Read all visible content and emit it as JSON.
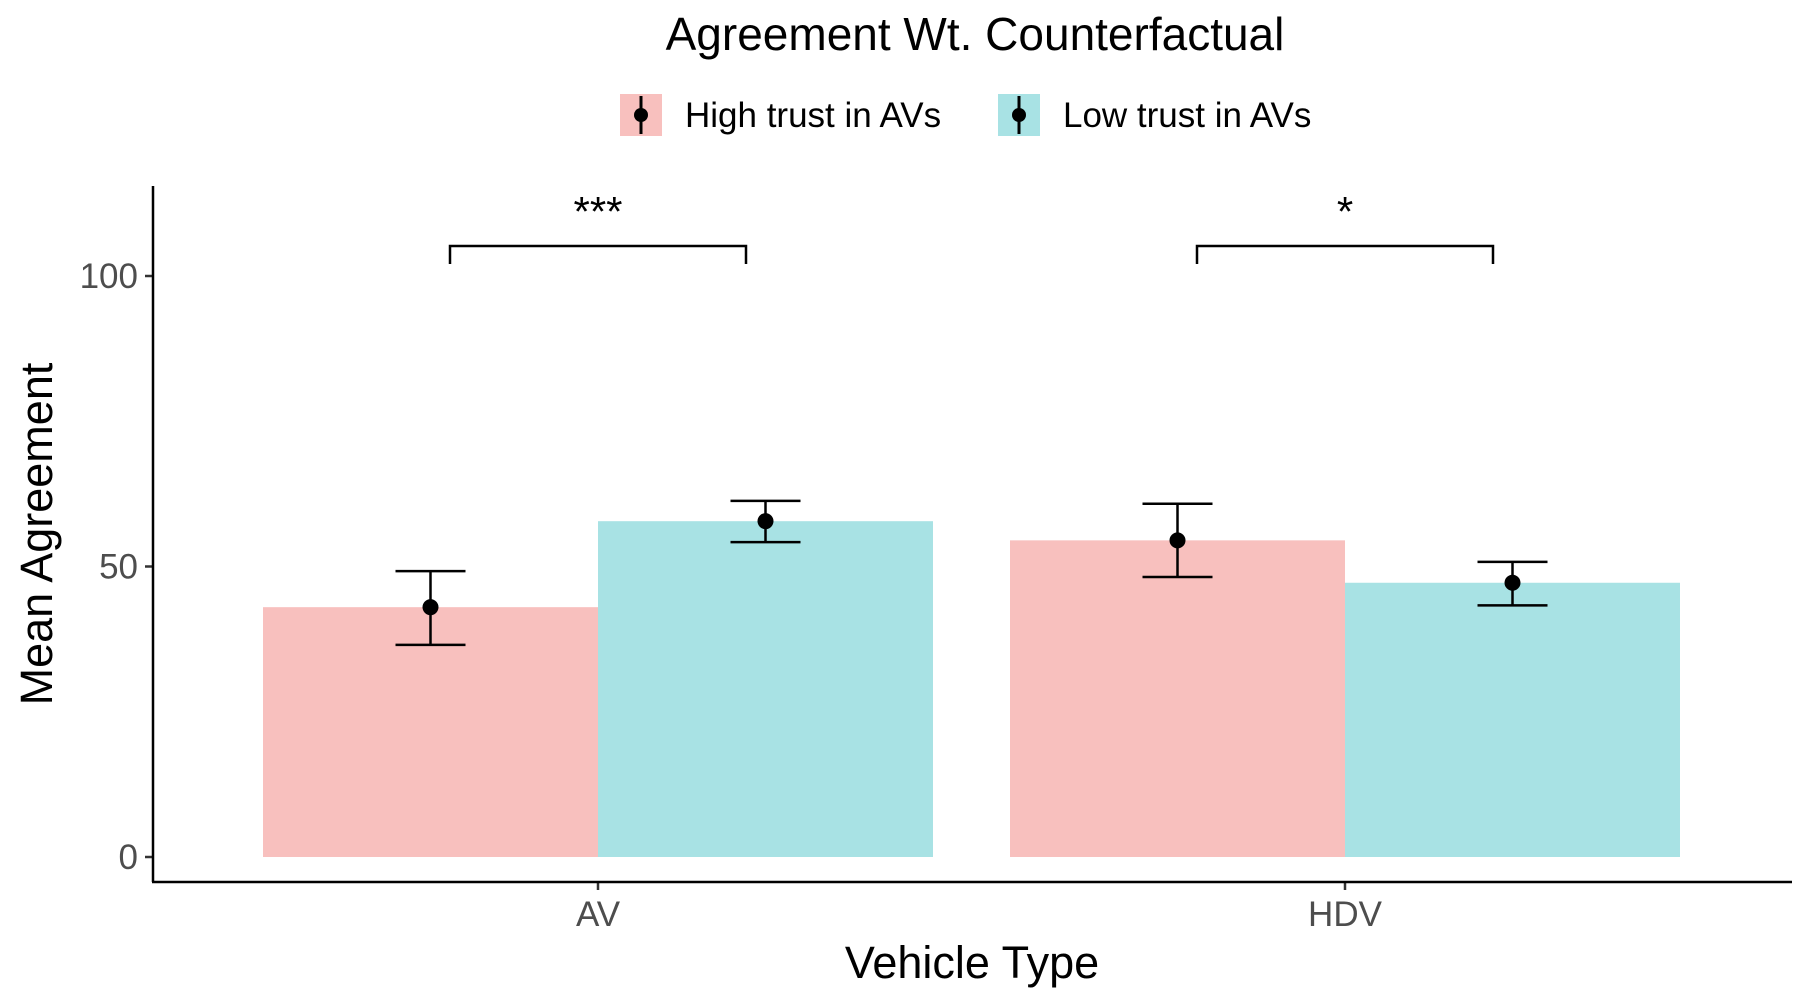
{
  "chart_data": {
    "type": "bar",
    "title": "Agreement Wt. Counterfactual",
    "xlabel": "Vehicle Type",
    "ylabel": "Mean Agreement",
    "categories": [
      "AV",
      "HDV"
    ],
    "ylim": [
      -4.5,
      115
    ],
    "yticks": [
      0,
      50,
      100
    ],
    "legend_position": "top",
    "grid": false,
    "series": [
      {
        "name": "High trust in AVs",
        "color": "#F8C0BE",
        "values": [
          43,
          54.5
        ],
        "error_low": [
          36.5,
          48.2
        ],
        "error_high": [
          49.2,
          60.8
        ]
      },
      {
        "name": "Low trust in AVs",
        "color": "#A8E2E4",
        "values": [
          57.8,
          47.2
        ],
        "error_low": [
          54.2,
          43.3
        ],
        "error_high": [
          61.3,
          50.8
        ]
      }
    ],
    "annotations": [
      {
        "category": "AV",
        "label": "***"
      },
      {
        "category": "HDV",
        "label": "*"
      }
    ]
  }
}
